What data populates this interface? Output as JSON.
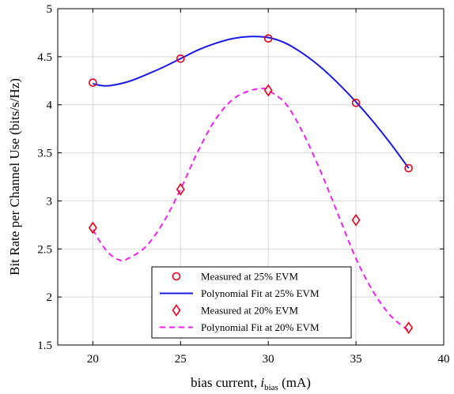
{
  "chart_data": {
    "type": "scatter",
    "xlabel": "bias current, ",
    "xlabel_var": "i",
    "xlabel_sub": "bias",
    "xlabel_unit": " (mA)",
    "ylabel": "Bit Rate per Channel Use (bits/s/Hz)",
    "xlim": [
      18,
      40
    ],
    "ylim": [
      1.5,
      5
    ],
    "xticks": [
      "20",
      "25",
      "30",
      "35",
      "40"
    ],
    "xtick_values": [
      20,
      25,
      30,
      35,
      40
    ],
    "yticks": [
      "1.5",
      "2",
      "2.5",
      "3",
      "3.5",
      "4",
      "4.5",
      "5"
    ],
    "ytick_values": [
      1.5,
      2,
      2.5,
      3,
      3.5,
      4,
      4.5,
      5
    ],
    "grid": true,
    "legend_position": "bottom-center",
    "series": [
      {
        "name": "Measured at 25% EVM",
        "kind": "markers",
        "marker": "circle",
        "color": "#e8001c",
        "x": [
          20,
          25,
          30,
          35,
          38
        ],
        "y": [
          4.23,
          4.48,
          4.69,
          4.02,
          3.34
        ]
      },
      {
        "name": "Polynomial Fit at 25% EVM",
        "kind": "line",
        "dash": "solid",
        "color": "#1a1ae6",
        "x": [
          20,
          20.5,
          21,
          22,
          23,
          24,
          25,
          26,
          27,
          28,
          29,
          30,
          31,
          32,
          33,
          34,
          35,
          36,
          37,
          38
        ],
        "y": [
          4.22,
          4.2,
          4.2,
          4.24,
          4.31,
          4.39,
          4.48,
          4.57,
          4.64,
          4.69,
          4.71,
          4.7,
          4.64,
          4.53,
          4.39,
          4.22,
          4.03,
          3.82,
          3.59,
          3.34
        ]
      },
      {
        "name": "Measured at 20% EVM",
        "kind": "markers",
        "marker": "diamond",
        "color": "#e8001c",
        "x": [
          20,
          25,
          30,
          35,
          38
        ],
        "y": [
          2.72,
          3.12,
          4.15,
          2.8,
          1.68
        ]
      },
      {
        "name": "Polynomial Fit at 20% EVM",
        "kind": "line",
        "dash": "dashed",
        "color": "#ee22ee",
        "x": [
          20,
          20.5,
          21,
          21.6,
          22,
          23,
          24,
          25,
          26,
          27,
          28,
          29,
          29.8,
          30,
          31,
          32,
          33,
          34,
          35,
          36,
          37,
          38
        ],
        "y": [
          2.7,
          2.55,
          2.44,
          2.38,
          2.4,
          2.52,
          2.77,
          3.12,
          3.52,
          3.85,
          4.06,
          4.15,
          4.17,
          4.15,
          4.01,
          3.7,
          3.3,
          2.85,
          2.4,
          2.05,
          1.8,
          1.65
        ]
      }
    ]
  }
}
